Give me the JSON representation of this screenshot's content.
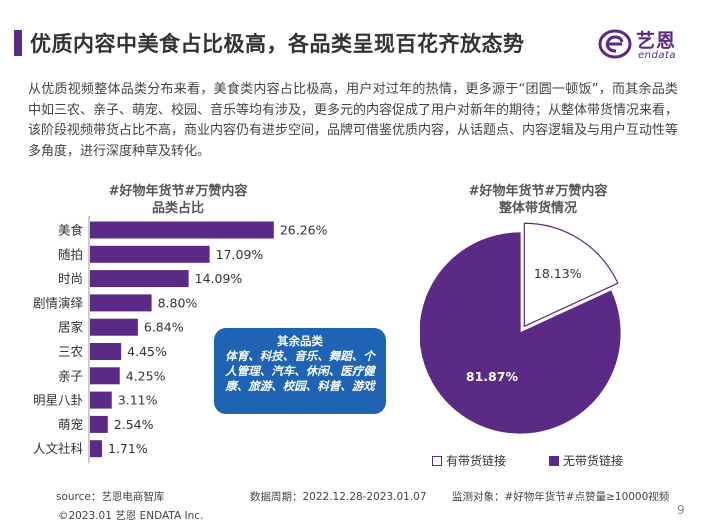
{
  "header": {
    "title": "优质内容中美食占比极高，各品类呈现百花齐放态势"
  },
  "logo": {
    "cn": "艺恩",
    "en": "endata"
  },
  "intro": "从优质视频整体品类分布来看，美食类内容占比极高，用户对过年的热情，更多源于“团圆一顿饭”，而其余品类中如三农、亲子、萌宠、校园、音乐等均有涉及，更多元的内容促成了用户对新年的期待；从整体带货情况来看，该阶段视频带货占比不高，商业内容仍有进步空间，品牌可借鉴优质内容，从话题点、内容逻辑及与用户互动性等多角度，进行深度种草及转化。",
  "bar_chart_title": {
    "line1": "#好物年货节#万赞内容",
    "line2": "品类占比"
  },
  "pie_chart_title": {
    "line1": "#好物年货节#万赞内容",
    "line2": "整体带货情况"
  },
  "callout": {
    "title": "其余品类",
    "body": "体育、科技、音乐、舞蹈、个人管理、汽车、休闲、医疗健康、旅游、校园、科普、游戏"
  },
  "colors": {
    "accent": "#5b2a86",
    "bar": "#5b2a86",
    "callout": "#1f63b5"
  },
  "chart_data": [
    {
      "type": "bar",
      "orientation": "horizontal",
      "categories": [
        "美食",
        "随拍",
        "时尚",
        "剧情演绎",
        "居家",
        "三农",
        "亲子",
        "明星八卦",
        "萌宠",
        "人文社科"
      ],
      "values": [
        26.26,
        17.09,
        14.09,
        8.8,
        6.84,
        4.45,
        4.25,
        3.11,
        2.54,
        1.71
      ],
      "value_labels": [
        "26.26%",
        "17.09%",
        "14.09%",
        "8.80%",
        "6.84%",
        "4.45%",
        "4.25%",
        "3.11%",
        "2.54%",
        "1.71%"
      ],
      "unit": "%",
      "title": "#好物年货节#万赞内容品类占比",
      "xlim": [
        0,
        30
      ]
    },
    {
      "type": "pie",
      "categories": [
        "有带货链接",
        "无带货链接"
      ],
      "values": [
        18.13,
        81.87
      ],
      "value_labels": [
        "18.13%",
        "81.87%"
      ],
      "colors": [
        "#ffffff",
        "#5b2a86"
      ],
      "title": "#好物年货节#万赞内容整体带货情况",
      "legend_position": "bottom"
    }
  ],
  "footer": {
    "source": "source：艺恩电商智库",
    "period": "数据周期：2022.12.28-2023.01.07",
    "monitor": "监测对象：#好物年货节#点赞量≥10000视频",
    "copyright": "©2023.01 艺恩 ENDATA Inc.",
    "page": "9"
  }
}
